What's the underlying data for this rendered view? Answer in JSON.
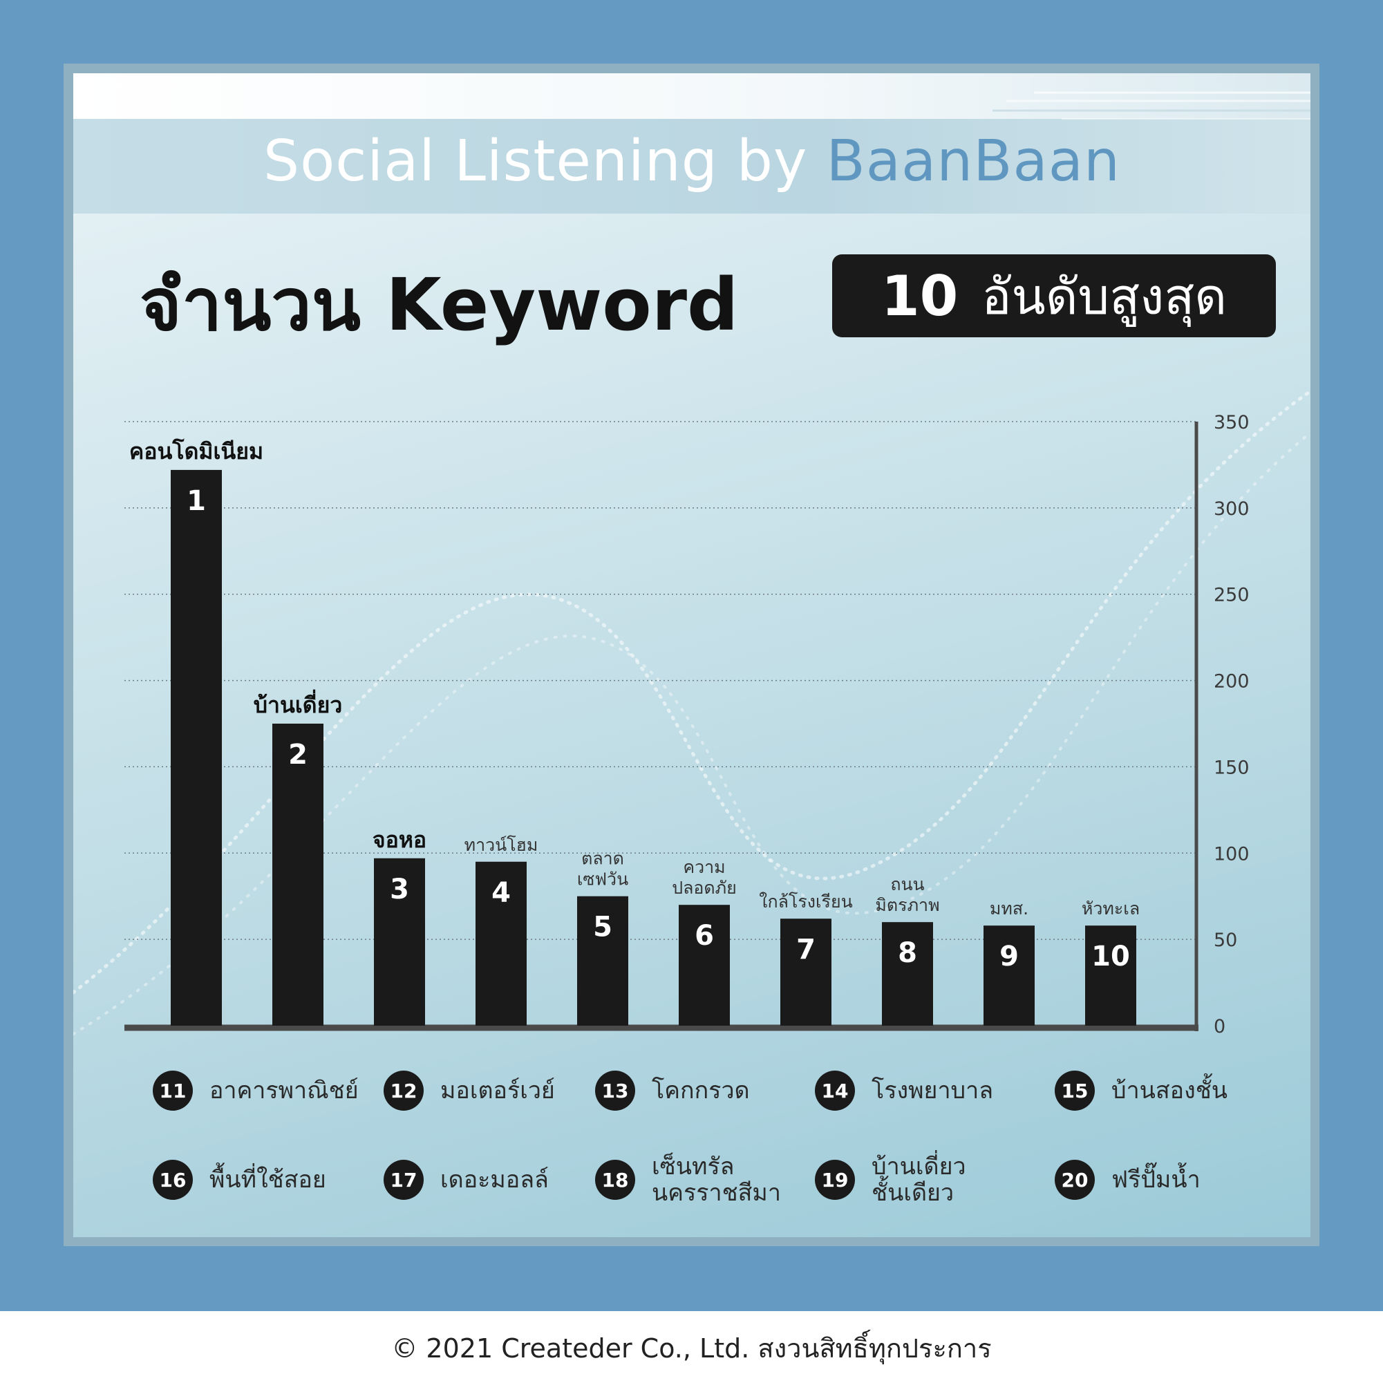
{
  "header": {
    "title_prefix": "Social Listening by ",
    "title_brand": "BaanBaan"
  },
  "heading": {
    "main": "จำนวน Keyword",
    "badge_number": "10",
    "badge_text": "อันดับสูงสุด"
  },
  "colors": {
    "frame": "#659bc2",
    "brand_accent": "#5f97c0",
    "bar": "#1b1a1a"
  },
  "chart_data": {
    "type": "bar",
    "categories": [
      "คอนโดมิเนียม",
      "บ้านเดี่ยว",
      "จอหอ",
      "ทาวน์โฮม",
      "ตลาด\nเซฟวัน",
      "ความ\nปลอดภัย",
      "ใกล้โรงเรียน",
      "ถนน\nมิตรภาพ",
      "มทส.",
      "หัวทะเล"
    ],
    "ranks": [
      "1",
      "2",
      "3",
      "4",
      "5",
      "6",
      "7",
      "8",
      "9",
      "10"
    ],
    "values": [
      322,
      175,
      97,
      95,
      75,
      70,
      62,
      60,
      58,
      58
    ],
    "bold_labels": [
      true,
      true,
      true,
      false,
      false,
      false,
      false,
      false,
      false,
      false
    ],
    "ylim": [
      0,
      350
    ],
    "yticks": [
      "0",
      "50",
      "100",
      "150",
      "200",
      "250",
      "300",
      "350"
    ],
    "y_axis_side": "right",
    "grid": true,
    "title": "",
    "xlabel": "",
    "ylabel": ""
  },
  "extra_keywords": [
    {
      "rank": "11",
      "label": "อาคารพาณิชย์"
    },
    {
      "rank": "12",
      "label": "มอเตอร์เวย์"
    },
    {
      "rank": "13",
      "label": "โคกกรวด"
    },
    {
      "rank": "14",
      "label": "โรงพยาบาล"
    },
    {
      "rank": "15",
      "label": "บ้านสองชั้น"
    },
    {
      "rank": "16",
      "label": "พื้นที่ใช้สอย"
    },
    {
      "rank": "17",
      "label": "เดอะมอลล์"
    },
    {
      "rank": "18",
      "label": "เซ็นทรัล\nนครราชสีมา"
    },
    {
      "rank": "19",
      "label": "บ้านเดี่ยว\nชั้นเดียว"
    },
    {
      "rank": "20",
      "label": "ฟรีปั๊มน้ำ"
    }
  ],
  "footer": {
    "copyright": "© 2021 Createder Co., Ltd. สงวนสิทธิ์ทุกประการ"
  }
}
